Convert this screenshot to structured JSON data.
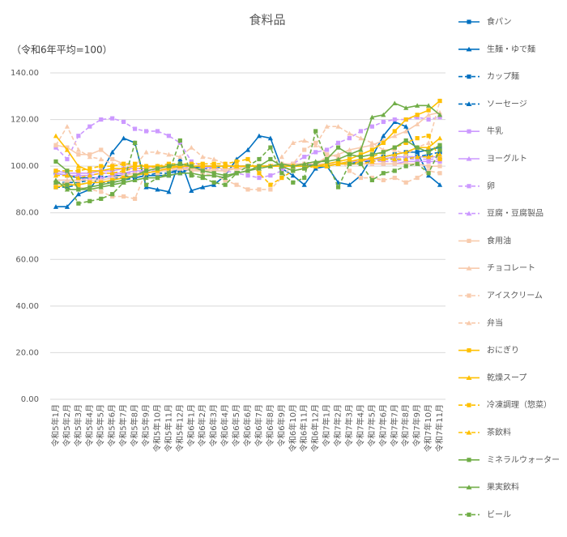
{
  "chart_data": {
    "type": "line",
    "title": "食料品",
    "subtitle": "（令和6年平均=100）",
    "categories": [
      "令和5年1月",
      "令和5年2月",
      "令和5年3月",
      "令和5年4月",
      "令和5年5月",
      "令和5年6月",
      "令和5年7月",
      "令和5年8月",
      "令和5年9月",
      "令和5年10月",
      "令和5年11月",
      "令和5年12月",
      "令和6年1月",
      "令和6年2月",
      "令和6年3月",
      "令和6年4月",
      "令和6年5月",
      "令和6年6月",
      "令和6年7月",
      "令和6年8月",
      "令和6年9月",
      "令和6年10月",
      "令和6年11月",
      "令和6年12月",
      "令和7年1月",
      "令和7年2月",
      "令和7年3月",
      "令和7年4月",
      "令和7年5月",
      "令和7年6月",
      "令和7年7月",
      "令和7年8月",
      "令和7年9月",
      "令和7年10月",
      "令和7年11月"
    ],
    "ylim": [
      0,
      140
    ],
    "yticks": [
      {
        "value": 0,
        "label": "0.00"
      },
      {
        "value": 20,
        "label": "20.00"
      },
      {
        "value": 40,
        "label": "40.00"
      },
      {
        "value": 60,
        "label": "60.00"
      },
      {
        "value": 80,
        "label": "80.00"
      },
      {
        "value": 100,
        "label": "100.00"
      },
      {
        "value": 120,
        "label": "120.00"
      },
      {
        "value": 140,
        "label": "140.00"
      }
    ],
    "grid": true,
    "legend": "right",
    "series": [
      {
        "name": "食パン",
        "color": "#0070c0",
        "marker": "square",
        "dash": false,
        "values": [
          97,
          96,
          95,
          95,
          95,
          96,
          96,
          95,
          96,
          96,
          96,
          97,
          99,
          100,
          100,
          100,
          100,
          100,
          100,
          100,
          100,
          100,
          100,
          101,
          101,
          101,
          102,
          102,
          103,
          104,
          105,
          106,
          106,
          107,
          108
        ]
      },
      {
        "name": "生麺・ゆで麺",
        "color": "#0070c0",
        "marker": "triangle",
        "dash": false,
        "values": [
          82.6,
          82.6,
          88,
          90,
          97,
          106,
          112,
          110,
          91,
          90,
          89,
          103,
          89.5,
          91,
          92,
          96,
          103,
          107,
          113,
          112,
          99,
          96,
          92,
          99,
          100,
          93,
          92,
          96,
          104,
          113,
          119,
          117,
          106,
          96,
          92
        ]
      },
      {
        "name": "カップ麺",
        "color": "#0070c0",
        "marker": "square",
        "dash": true,
        "values": [
          91,
          91,
          92,
          93,
          93,
          93,
          94,
          95,
          96,
          97,
          97,
          98,
          99,
          99,
          99,
          100,
          100,
          100,
          100,
          100,
          100,
          100,
          100,
          101,
          101,
          101,
          102,
          102,
          103,
          103,
          104,
          104,
          104,
          105,
          106
        ]
      },
      {
        "name": "ソーセージ",
        "color": "#0070c0",
        "marker": "triangle",
        "dash": true,
        "values": [
          93,
          93,
          93,
          94,
          94,
          95,
          95,
          96,
          97,
          98,
          98,
          98,
          99,
          99,
          100,
          100,
          100,
          100,
          100,
          100,
          100,
          100,
          100,
          100,
          101,
          101,
          101,
          102,
          102,
          103,
          103,
          103,
          104,
          104,
          104
        ]
      },
      {
        "name": "牛乳",
        "color": "#cc99ff",
        "marker": "square",
        "dash": false,
        "values": [
          98,
          97,
          97,
          97,
          98,
          98,
          99,
          99,
          99,
          100,
          100,
          100,
          100,
          100,
          100,
          100,
          100,
          100,
          100,
          100,
          100,
          100,
          100,
          100,
          100,
          101,
          101,
          101,
          101,
          101,
          101,
          102,
          102,
          102,
          102
        ]
      },
      {
        "name": "ヨーグルト",
        "color": "#cc99ff",
        "marker": "triangle",
        "dash": false,
        "values": [
          97,
          96,
          96,
          96,
          97,
          97,
          97,
          98,
          98,
          99,
          99,
          99,
          99,
          99,
          100,
          100,
          100,
          100,
          100,
          100,
          100,
          100,
          101,
          101,
          101,
          101,
          102,
          102,
          103,
          103,
          104,
          104,
          104,
          104,
          104
        ]
      },
      {
        "name": "卵",
        "color": "#cc99ff",
        "marker": "square",
        "dash": true,
        "values": [
          108,
          103,
          113,
          117,
          120,
          120.5,
          119,
          116,
          115,
          115,
          113,
          110,
          102,
          100,
          99,
          98,
          97,
          96,
          95,
          96,
          98,
          101,
          104,
          106,
          107,
          110,
          112,
          115,
          117,
          119,
          120,
          120,
          121,
          120,
          121
        ]
      },
      {
        "name": "豆腐・豆腐製品",
        "color": "#cc99ff",
        "marker": "triangle",
        "dash": true,
        "values": [
          94,
          94,
          94,
          95,
          95,
          96,
          97,
          97,
          98,
          98,
          99,
          99,
          100,
          100,
          100,
          100,
          100,
          100,
          100,
          100,
          100,
          100,
          100,
          100,
          101,
          101,
          101,
          101,
          102,
          102,
          102,
          103,
          103,
          103,
          103
        ]
      },
      {
        "name": "食用油",
        "color": "#f8cbad",
        "marker": "square",
        "dash": false,
        "values": [
          109,
          108,
          105,
          105,
          107,
          103,
          101,
          100,
          100,
          99,
          99,
          99,
          99,
          98,
          98,
          98,
          99,
          100,
          100,
          100,
          101,
          101,
          101,
          101,
          101,
          101,
          101,
          101,
          101,
          101,
          101,
          101,
          101,
          100,
          100
        ]
      },
      {
        "name": "チョコレート",
        "color": "#f8cbad",
        "marker": "triangle",
        "dash": false,
        "values": [
          94,
          94,
          94,
          94,
          94,
          95,
          96,
          97,
          97,
          98,
          98,
          99,
          98,
          98,
          99,
          99,
          99,
          100,
          100,
          100,
          100,
          101,
          101,
          101,
          104,
          105,
          107,
          108,
          109,
          111,
          113,
          115,
          118,
          122,
          123
        ]
      },
      {
        "name": "アイスクリーム",
        "color": "#f8cbad",
        "marker": "square",
        "dash": true,
        "values": [
          92,
          93,
          91,
          90,
          89,
          87,
          87,
          86,
          98,
          97,
          99,
          100,
          99,
          97,
          96,
          94,
          92,
          90,
          90,
          90,
          95,
          101,
          107,
          110,
          105,
          104,
          98,
          95,
          95,
          94,
          95,
          93,
          95,
          98,
          97
        ]
      },
      {
        "name": "弁当",
        "color": "#f8cbad",
        "marker": "triangle",
        "dash": true,
        "values": [
          109,
          117,
          107,
          104,
          103,
          101,
          101,
          100,
          106,
          106,
          105,
          104,
          108,
          104,
          103,
          101,
          99,
          98,
          99,
          100,
          104,
          110,
          111,
          109,
          117,
          117,
          114,
          112,
          110,
          107,
          107,
          105,
          108,
          110,
          128
        ]
      },
      {
        "name": "おにぎり",
        "color": "#ffc000",
        "marker": "square",
        "dash": false,
        "values": [
          91,
          92,
          92,
          93,
          93,
          94,
          95,
          96,
          97,
          98,
          99,
          100,
          100,
          100,
          100,
          100,
          100,
          100,
          100,
          100,
          100,
          100,
          100,
          100,
          101,
          102,
          103,
          105,
          107,
          110,
          115,
          120,
          122,
          124,
          128
        ]
      },
      {
        "name": "乾燥スープ",
        "color": "#ffc000",
        "marker": "triangle",
        "dash": false,
        "values": [
          113,
          107,
          100,
          98,
          98,
          99,
          99,
          100,
          100,
          100,
          100,
          100,
          100,
          100,
          100,
          100,
          100,
          100,
          100,
          100,
          100,
          100,
          100,
          100,
          100,
          101,
          102,
          103,
          103,
          104,
          105,
          106,
          108,
          108,
          112
        ]
      },
      {
        "name": "冷凍調理（惣菜）",
        "color": "#ffc000",
        "marker": "square",
        "dash": true,
        "values": [
          98,
          98,
          98,
          99,
          100,
          100,
          101,
          101,
          100,
          100,
          101,
          101,
          101,
          101,
          101,
          101,
          102,
          103,
          97,
          92,
          95,
          98,
          99,
          100,
          100,
          101,
          101,
          102,
          104,
          106,
          108,
          110,
          112,
          113,
          103
        ]
      },
      {
        "name": "茶飲料",
        "color": "#ffc000",
        "marker": "triangle",
        "dash": true,
        "values": [
          96,
          96,
          95,
          96,
          97,
          97,
          98,
          99,
          99,
          100,
          100,
          100,
          100,
          100,
          100,
          100,
          100,
          100,
          100,
          100,
          100,
          100,
          100,
          100,
          100,
          101,
          101,
          101,
          102,
          103,
          103,
          103,
          104,
          104,
          105
        ]
      },
      {
        "name": "ミネラルウォーター",
        "color": "#70ad47",
        "marker": "square",
        "dash": false,
        "values": [
          102,
          98,
          90,
          91,
          92,
          93,
          94,
          96,
          98,
          99,
          100,
          101,
          100,
          98,
          97,
          96,
          97,
          98,
          100,
          103,
          100,
          98,
          99,
          101,
          103,
          108,
          105,
          104,
          105,
          106,
          108,
          111,
          108,
          106,
          109
        ]
      },
      {
        "name": "果実飲料",
        "color": "#70ad47",
        "marker": "triangle",
        "dash": false,
        "values": [
          94,
          90,
          90,
          90,
          91,
          92,
          93,
          94,
          95,
          95,
          96,
          97,
          97,
          96,
          96,
          95,
          97,
          98,
          99,
          100,
          101,
          100,
          101,
          102,
          102,
          103,
          105,
          107,
          121,
          122,
          127,
          125,
          126,
          126,
          122
        ]
      },
      {
        "name": "ビール",
        "color": "#70ad47",
        "marker": "square",
        "dash": true,
        "values": [
          93,
          92,
          84,
          85,
          86,
          88,
          93,
          110,
          92,
          95,
          97,
          111,
          96,
          95,
          93,
          92,
          97,
          100,
          103,
          108,
          97,
          93,
          95,
          115,
          102,
          91,
          101,
          101,
          94,
          97,
          98,
          100,
          101,
          97,
          107
        ]
      }
    ]
  }
}
